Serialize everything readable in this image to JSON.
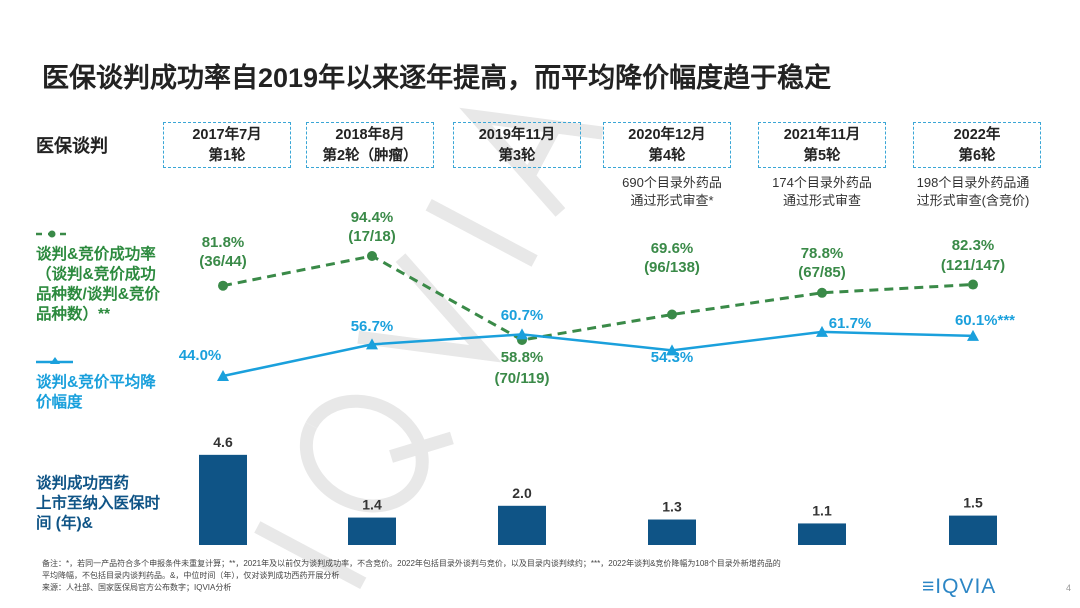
{
  "title": "医保谈判成功率自2019年以来逐年提高，而平均降价幅度趋于稳定",
  "row_labels": {
    "negotiation": "医保谈判",
    "success": [
      "谈判&竞价成功率",
      "（谈判&竞价成功",
      "品种数/谈判&竞价",
      "品种数）**"
    ],
    "price": [
      "谈判&竞价平均降",
      "价幅度"
    ],
    "time": [
      "谈判成功西药",
      "上市至纳入医保时",
      "间 (年)&"
    ]
  },
  "rounds": [
    {
      "date": "2017年7月",
      "round": "第1轮",
      "note": []
    },
    {
      "date": "2018年8月",
      "round": "第2轮（肿瘤）",
      "note": []
    },
    {
      "date": "2019年11月",
      "round": "第3轮",
      "note": []
    },
    {
      "date": "2020年12月",
      "round": "第4轮",
      "note": [
        "690个目录外药品",
        "通过形式审查*"
      ]
    },
    {
      "date": "2021年11月",
      "round": "第5轮",
      "note": [
        "174个目录外药品",
        "通过形式审查"
      ]
    },
    {
      "date": "2022年",
      "round": "第6轮",
      "note": [
        "198个目录外药品通",
        "过形式审查(含竞价)"
      ]
    }
  ],
  "chart_data": {
    "type": "line+bar",
    "categories": [
      "2017年7月",
      "2018年8月",
      "2019年11月",
      "2020年12月",
      "2021年11月",
      "2022年"
    ],
    "success_rate": {
      "values": [
        81.8,
        94.4,
        58.8,
        69.6,
        78.8,
        82.3
      ],
      "labels": [
        "81.8%",
        "94.4%",
        "58.8%",
        "69.6%",
        "78.8%",
        "82.3%"
      ],
      "fractions": [
        "(36/44)",
        "(17/18)",
        "(70/119)",
        "(96/138)",
        "(67/85)",
        "(121/147)"
      ],
      "color": "#3a8a48",
      "style": "dashed"
    },
    "avg_price_cut": {
      "values": [
        44.0,
        56.7,
        60.7,
        54.3,
        61.7,
        60.1
      ],
      "labels": [
        "44.0%",
        "56.7%",
        "60.7%",
        "54.3%",
        "61.7%",
        "60.1%***"
      ],
      "color": "#1aa0dc"
    },
    "time_to_listing": {
      "values": [
        4.6,
        1.4,
        2.0,
        1.3,
        1.1,
        1.5
      ],
      "labels": [
        "4.6",
        "1.4",
        "2.0",
        "1.3",
        "1.1",
        "1.5"
      ],
      "color": "#0f5486"
    }
  },
  "footnote": [
    "备注：*，若同一产品符合多个申报条件未重复计算；**，2021年及以前仅为谈判成功率，不含竞价。2022年包括目录外谈判与竞价，以及目录内谈判续约；***，2022年谈判&竞价降幅为108个目录外新增药品的",
    "平均降幅，不包括目录内谈判药品。&，中位时间（年），仅对谈判成功西药开展分析",
    "来源：人社部、国家医保局官方公布数字；IQVIA分析"
  ],
  "watermark": "IQVIA",
  "logo": "IQVIA",
  "page_number": "4"
}
